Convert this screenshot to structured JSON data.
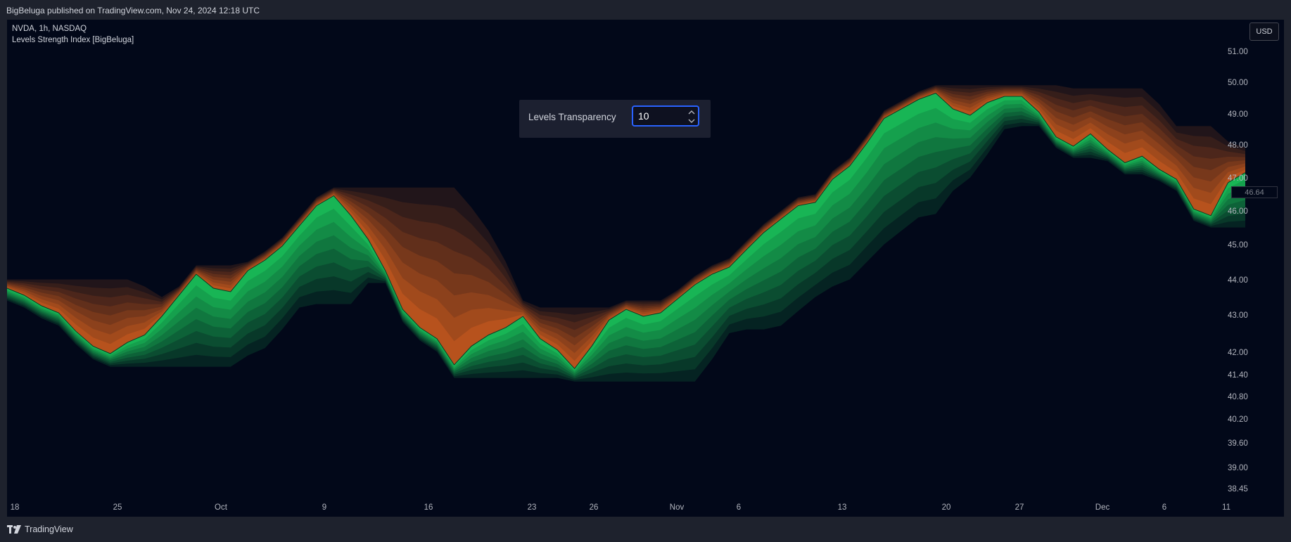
{
  "header": {
    "published_by": "BigBeluga published on TradingView.com, Nov 24, 2024 12:18 UTC"
  },
  "legend": {
    "symbol": "NVDA, 1h, NASDAQ",
    "indicator": "Levels Strength Index [BigBeluga]"
  },
  "currency_button": "USD",
  "last_price_label": "46.64",
  "dialog": {
    "label": "Levels Transparency",
    "value": "10"
  },
  "footer": {
    "brand": "TradingView"
  },
  "colors": {
    "bull": "#1ee565",
    "bear": "#f06a1e",
    "background": "#020819"
  },
  "chart_data": {
    "type": "area",
    "y_ticks": [
      "51.00",
      "50.00",
      "49.00",
      "48.00",
      "47.00",
      "46.00",
      "45.00",
      "44.00",
      "43.00",
      "42.00",
      "41.40",
      "40.80",
      "40.20",
      "39.60",
      "39.00",
      "38.45"
    ],
    "x_ticks": [
      "18",
      "25",
      "Oct",
      "9",
      "16",
      "23",
      "26",
      "Nov",
      "6",
      "13",
      "20",
      "27",
      "Dec",
      "6",
      "11"
    ],
    "series": [
      {
        "values": [
          43.8,
          43.6,
          43.3,
          43.1,
          42.6,
          42.2,
          42.0,
          42.3,
          42.5,
          43.0,
          43.6,
          44.2,
          43.8,
          43.7,
          44.3,
          44.6,
          45.0,
          45.6,
          46.2,
          46.5,
          45.9,
          45.2,
          44.3,
          43.2,
          42.7,
          42.4,
          41.7,
          42.2,
          42.5,
          42.7,
          43.0,
          42.4,
          42.1,
          41.6,
          42.2,
          42.9,
          43.2,
          43.0,
          43.1,
          43.5,
          43.9,
          44.2,
          44.4,
          44.9,
          45.4,
          45.8,
          46.2,
          46.3,
          47.0,
          47.4,
          48.1,
          48.9,
          49.2,
          49.5,
          49.7,
          49.2,
          49.0,
          49.4,
          49.6,
          49.6,
          49.1,
          48.3,
          48.0,
          48.4,
          47.9,
          47.5,
          47.7,
          47.3,
          47.0,
          46.1,
          45.9,
          46.9,
          47.2
        ]
      }
    ]
  }
}
